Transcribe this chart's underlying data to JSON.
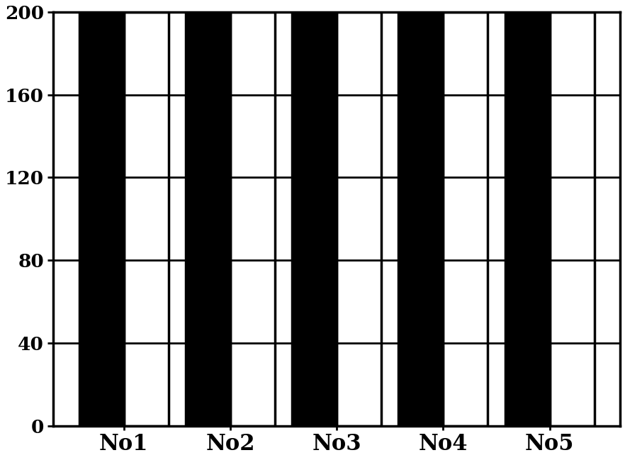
{
  "categories": [
    "No1",
    "No2",
    "No3",
    "No4",
    "No5"
  ],
  "bar1_values": [
    200,
    200,
    200,
    200,
    200
  ],
  "bar2_values": [
    200,
    200,
    200,
    200,
    200
  ],
  "bar1_color": "#000000",
  "bar2_color": "#ffffff",
  "bar_edgecolor": "#000000",
  "ylim": [
    0,
    200
  ],
  "yticks": [
    0,
    40,
    80,
    120,
    160,
    200
  ],
  "bar_width": 0.42,
  "grid_color": "#000000",
  "background_color": "#ffffff",
  "tick_fontsize": 19,
  "label_fontsize": 22,
  "line_width": 2.5,
  "grid_linewidth": 2.0
}
